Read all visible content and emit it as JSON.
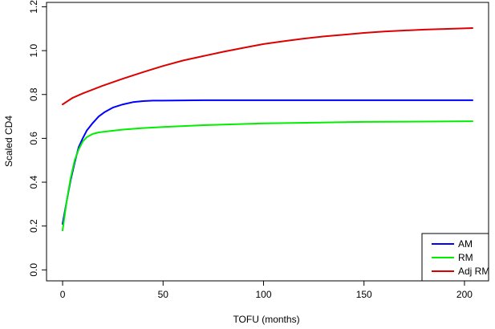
{
  "chart_data": {
    "type": "line",
    "title": "",
    "xlabel": "TOFU  (months)",
    "ylabel": "Scaled CD4",
    "xlim": [
      -8,
      212
    ],
    "ylim": [
      -0.05,
      1.22
    ],
    "x_ticks": [
      0,
      50,
      100,
      150,
      200
    ],
    "x_tick_labels": [
      "0",
      "50",
      "100",
      "150",
      "200"
    ],
    "y_ticks": [
      0.0,
      0.2,
      0.4,
      0.6,
      0.8,
      1.0,
      1.2
    ],
    "y_tick_labels": [
      "0.0",
      "0.2",
      "0.4",
      "0.6",
      "0.8",
      "1.0",
      "1.2"
    ],
    "grid": false,
    "legend_position": "bottom-right",
    "series": [
      {
        "name": "AM",
        "color": "#0000ff",
        "x": [
          0,
          2,
          4,
          6,
          8,
          10,
          12,
          15,
          18,
          21,
          25,
          30,
          35,
          40,
          45,
          50,
          70,
          100,
          150,
          204
        ],
        "y": [
          0.21,
          0.31,
          0.41,
          0.49,
          0.56,
          0.6,
          0.635,
          0.67,
          0.7,
          0.72,
          0.74,
          0.755,
          0.765,
          0.77,
          0.772,
          0.772,
          0.774,
          0.774,
          0.774,
          0.774
        ]
      },
      {
        "name": "RM",
        "color": "#00ee00",
        "x": [
          0,
          2,
          4,
          6,
          8,
          10,
          12,
          15,
          18,
          22,
          26,
          30,
          40,
          50,
          70,
          100,
          150,
          204
        ],
        "y": [
          0.18,
          0.31,
          0.42,
          0.5,
          0.55,
          0.585,
          0.605,
          0.62,
          0.627,
          0.632,
          0.636,
          0.64,
          0.647,
          0.652,
          0.66,
          0.668,
          0.675,
          0.678
        ]
      },
      {
        "name": "Adj RM",
        "color": "#dd0000",
        "x": [
          0,
          5,
          10,
          20,
          30,
          40,
          50,
          60,
          70,
          80,
          90,
          100,
          110,
          120,
          130,
          140,
          150,
          160,
          170,
          180,
          190,
          204
        ],
        "y": [
          0.755,
          0.785,
          0.805,
          0.84,
          0.872,
          0.902,
          0.93,
          0.955,
          0.975,
          0.995,
          1.013,
          1.03,
          1.043,
          1.055,
          1.065,
          1.073,
          1.081,
          1.087,
          1.092,
          1.096,
          1.099,
          1.103
        ]
      }
    ]
  }
}
